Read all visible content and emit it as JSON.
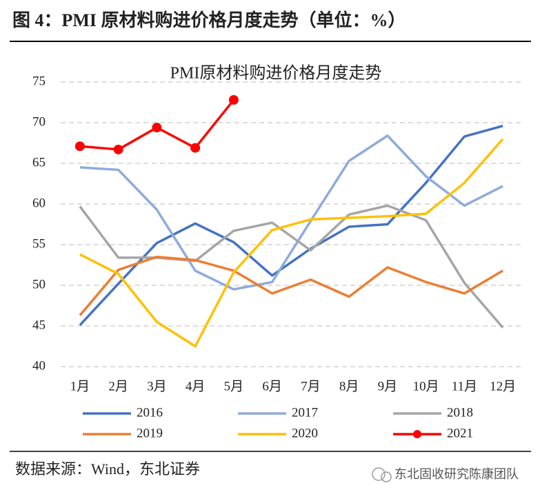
{
  "figure_title": "图 4：PMI 原材料购进价格月度走势（单位：%）",
  "chart_data": {
    "type": "line",
    "title": "PMI原材料购进价格月度走势",
    "categories": [
      "1月",
      "2月",
      "3月",
      "4月",
      "5月",
      "6月",
      "7月",
      "8月",
      "9月",
      "10月",
      "11月",
      "12月"
    ],
    "series": [
      {
        "name": "2016",
        "color": "#4472c4",
        "values": [
          45.1,
          50.2,
          55.2,
          57.6,
          55.3,
          51.2,
          54.5,
          57.2,
          57.5,
          62.6,
          68.3,
          69.6
        ]
      },
      {
        "name": "2017",
        "color": "#8faadc",
        "values": [
          64.5,
          64.2,
          59.3,
          51.8,
          49.5,
          50.4,
          57.9,
          65.3,
          68.4,
          63.4,
          59.8,
          62.2
        ]
      },
      {
        "name": "2018",
        "color": "#a5a5a5",
        "values": [
          59.7,
          53.4,
          53.4,
          53.0,
          56.7,
          57.7,
          54.3,
          58.7,
          59.8,
          58.0,
          50.3,
          44.8
        ]
      },
      {
        "name": "2019",
        "color": "#ed7d31",
        "values": [
          46.3,
          51.9,
          53.5,
          53.1,
          51.8,
          49.0,
          50.7,
          48.6,
          52.2,
          50.4,
          49.0,
          51.8
        ]
      },
      {
        "name": "2020",
        "color": "#ffc000",
        "values": [
          53.8,
          51.4,
          45.5,
          42.5,
          51.6,
          56.8,
          58.1,
          58.3,
          58.5,
          58.8,
          62.6,
          68.0
        ]
      },
      {
        "name": "2021",
        "color": "#ff0000",
        "markers": true,
        "values": [
          67.1,
          66.7,
          69.4,
          66.9,
          72.8,
          null,
          null,
          null,
          null,
          null,
          null,
          null
        ]
      }
    ],
    "ylim": [
      40,
      75
    ],
    "yticks": [
      40,
      45,
      50,
      55,
      60,
      65,
      70,
      75
    ],
    "grid": true,
    "legend": "bottom"
  },
  "source": "数据来源：Wind，东北证券",
  "watermark": "东北固收研究陈康团队"
}
